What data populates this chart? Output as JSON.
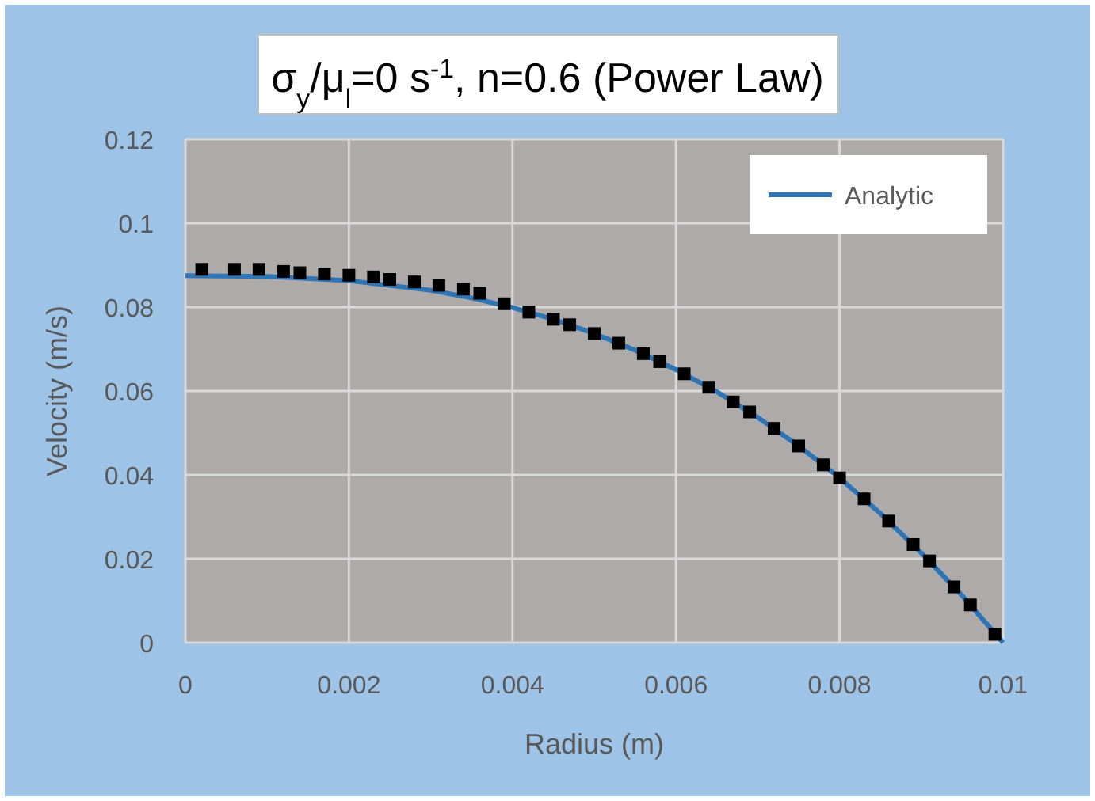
{
  "chart_data": {
    "type": "line",
    "title": "σ$_{y}$/μ$_{l}$=0 s$^{-1}$, n=0.6 (Power Law)",
    "xlabel": "Radius (m)",
    "ylabel": "Velocity (m/s)",
    "xlim": [
      0,
      0.01
    ],
    "xticks": [
      0,
      0.002,
      0.004,
      0.006,
      0.008,
      0.01
    ],
    "ylim": [
      0,
      0.12
    ],
    "yticks": [
      0,
      0.02,
      0.04,
      0.06,
      0.08,
      0.1,
      0.12
    ],
    "grid": true,
    "legend": "top right",
    "series": [
      {
        "name": "Analytic",
        "color": "#2e75b6",
        "marker": "none",
        "line_style": "solid",
        "x": [
          0,
          0.001,
          0.002,
          0.003,
          0.0035,
          0.004,
          0.0045,
          0.005,
          0.0055,
          0.006,
          0.0065,
          0.007,
          0.0075,
          0.008,
          0.0085,
          0.009,
          0.0095,
          0.01
        ],
        "values": [
          0.0875,
          0.0873,
          0.0863,
          0.084,
          0.0822,
          0.0799,
          0.0771,
          0.0737,
          0.0697,
          0.0651,
          0.0598,
          0.0537,
          0.0469,
          0.0393,
          0.0308,
          0.0214,
          0.0112,
          0
        ]
      },
      {
        "type": "scatter",
        "color": "#000000",
        "marker": "square",
        "x": [
          0.0002,
          0.0006,
          0.0009,
          0.0012,
          0.0014,
          0.0017,
          0.002,
          0.0023,
          0.0025,
          0.0028,
          0.0031,
          0.0034,
          0.0036,
          0.0039,
          0.0042,
          0.0045,
          0.0047,
          0.005,
          0.0053,
          0.0056,
          0.0058,
          0.0061,
          0.0064,
          0.0067,
          0.0069,
          0.0072,
          0.0075,
          0.0078,
          0.008,
          0.0083,
          0.0086,
          0.0089,
          0.0091,
          0.0094,
          0.0096,
          0.0099
        ],
        "values": [
          0.089,
          0.089,
          0.089,
          0.0885,
          0.0882,
          0.0879,
          0.0876,
          0.0872,
          0.0866,
          0.086,
          0.0852,
          0.0843,
          0.0833,
          0.0808,
          0.0788,
          0.0771,
          0.0758,
          0.0737,
          0.0714,
          0.0689,
          0.067,
          0.0641,
          0.0609,
          0.0574,
          0.055,
          0.0511,
          0.0469,
          0.0424,
          0.0393,
          0.0343,
          0.029,
          0.0234,
          0.0195,
          0.0133,
          0.009,
          0.002
        ]
      }
    ]
  }
}
